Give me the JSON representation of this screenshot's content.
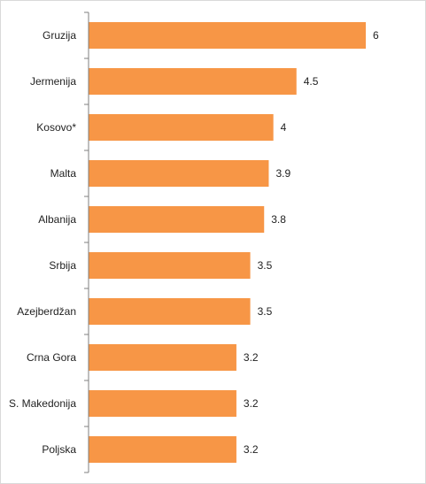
{
  "chart_data": {
    "type": "bar",
    "orientation": "horizontal",
    "categories": [
      "Gruzija",
      "Jermenija",
      "Kosovo*",
      "Malta",
      "Albanija",
      "Srbija",
      "Azejberdžan",
      "Crna Gora",
      "S. Makedonija",
      "Poljska"
    ],
    "values": [
      6,
      4.5,
      4,
      3.9,
      3.8,
      3.5,
      3.5,
      3.2,
      3.2,
      3.2
    ],
    "value_labels": [
      "6",
      "4.5",
      "4",
      "3.9",
      "3.8",
      "3.5",
      "3.5",
      "3.2",
      "3.2",
      "3.2"
    ],
    "xlim": [
      0,
      6.6
    ],
    "title": "",
    "xlabel": "",
    "ylabel": "",
    "grid": false,
    "legend": "none",
    "bar_color": "#f79646",
    "axis_color": "#7f7f7f"
  }
}
